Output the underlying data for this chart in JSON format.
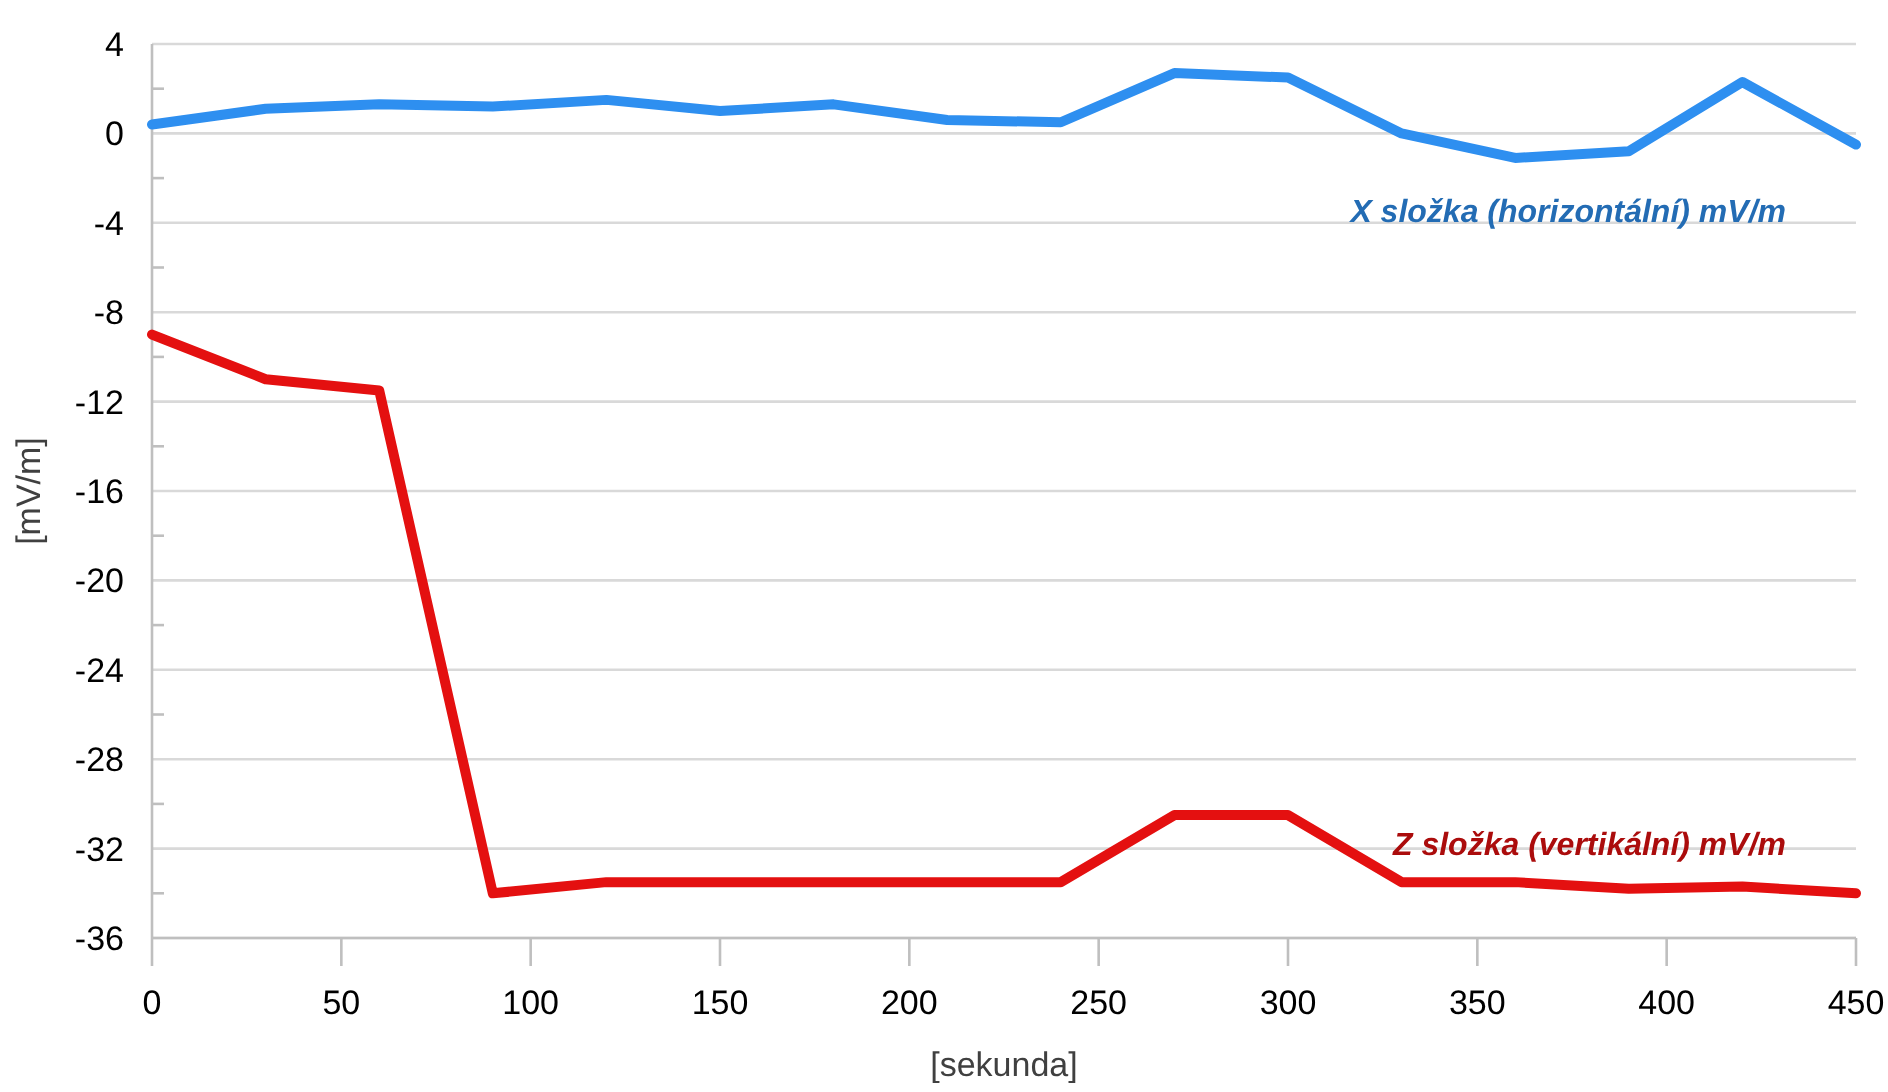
{
  "chart_data": {
    "type": "line",
    "xlabel": "[sekunda]",
    "ylabel": "[mV/m]",
    "x": [
      0,
      30,
      60,
      90,
      120,
      150,
      180,
      210,
      240,
      270,
      300,
      330,
      360,
      390,
      420,
      450
    ],
    "series": [
      {
        "name": "X složka (horizontální) mV/m",
        "color": "#2e8ff0",
        "values": [
          0.4,
          1.1,
          1.3,
          1.2,
          1.5,
          1.0,
          1.3,
          0.6,
          0.5,
          2.7,
          2.5,
          0.0,
          -1.1,
          -0.8,
          2.3,
          -0.5
        ]
      },
      {
        "name": "Z složka (vertikální) mV/m",
        "color": "#e41010",
        "values": [
          -9,
          -11,
          -11.5,
          -34,
          -33.5,
          -33.5,
          -33.5,
          -33.5,
          -33.5,
          -30.5,
          -30.5,
          -33.5,
          -33.5,
          -33.8,
          -33.7,
          -34
        ]
      }
    ],
    "xlim": [
      0,
      450
    ],
    "xticks": [
      0,
      50,
      100,
      150,
      200,
      250,
      300,
      350,
      400,
      450
    ],
    "ylim": [
      -36,
      4
    ],
    "yticks": [
      4,
      {
        "value": 2,
        "label": null
      },
      0,
      {
        "value": -2,
        "label": null
      },
      -4,
      {
        "value": -6,
        "label": null
      },
      -8,
      {
        "value": -10,
        "label": null
      },
      -12,
      {
        "value": -14,
        "label": null
      },
      -16,
      {
        "value": -18,
        "label": null
      },
      -20,
      {
        "value": -22,
        "label": null
      },
      -24,
      {
        "value": -26,
        "label": null
      },
      -28,
      {
        "value": -30,
        "label": null
      },
      -32,
      {
        "value": -34,
        "label": null
      },
      -36
    ],
    "grid": "y",
    "marker": "none",
    "line_style": "solid"
  }
}
